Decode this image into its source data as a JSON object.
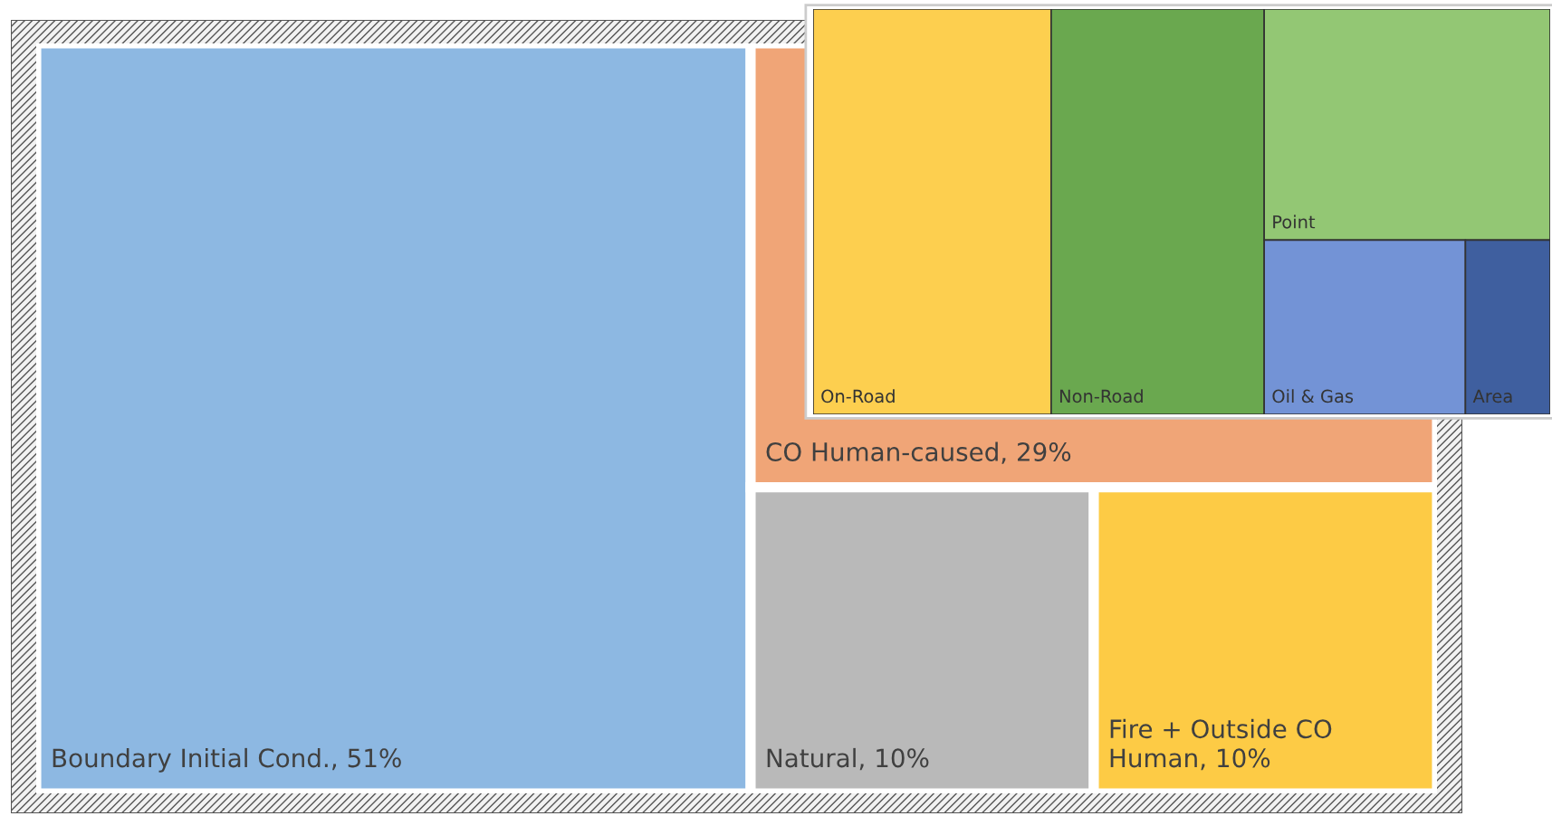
{
  "chart_data": [
    {
      "type": "other",
      "categories": [
        "Boundary Initial Cond.",
        "CO Human-caused",
        "Natural",
        "Fire + Outside CO Human"
      ],
      "values": [
        51,
        29,
        10,
        10
      ],
      "value_labels": [
        "51%",
        "29%",
        "10%",
        "10%"
      ],
      "colors": [
        "#8db8e2",
        "#f0a577",
        "#b9b9b9",
        "#fdcb45"
      ]
    },
    {
      "type": "other",
      "categories": [
        "On-Road",
        "Non-Road",
        "Point",
        "Oil & Gas",
        "Area"
      ],
      "colors": [
        "#fdcf4f",
        "#6aa84f",
        "#93c774",
        "#7393d6",
        "#3f5f9f"
      ]
    }
  ]
}
